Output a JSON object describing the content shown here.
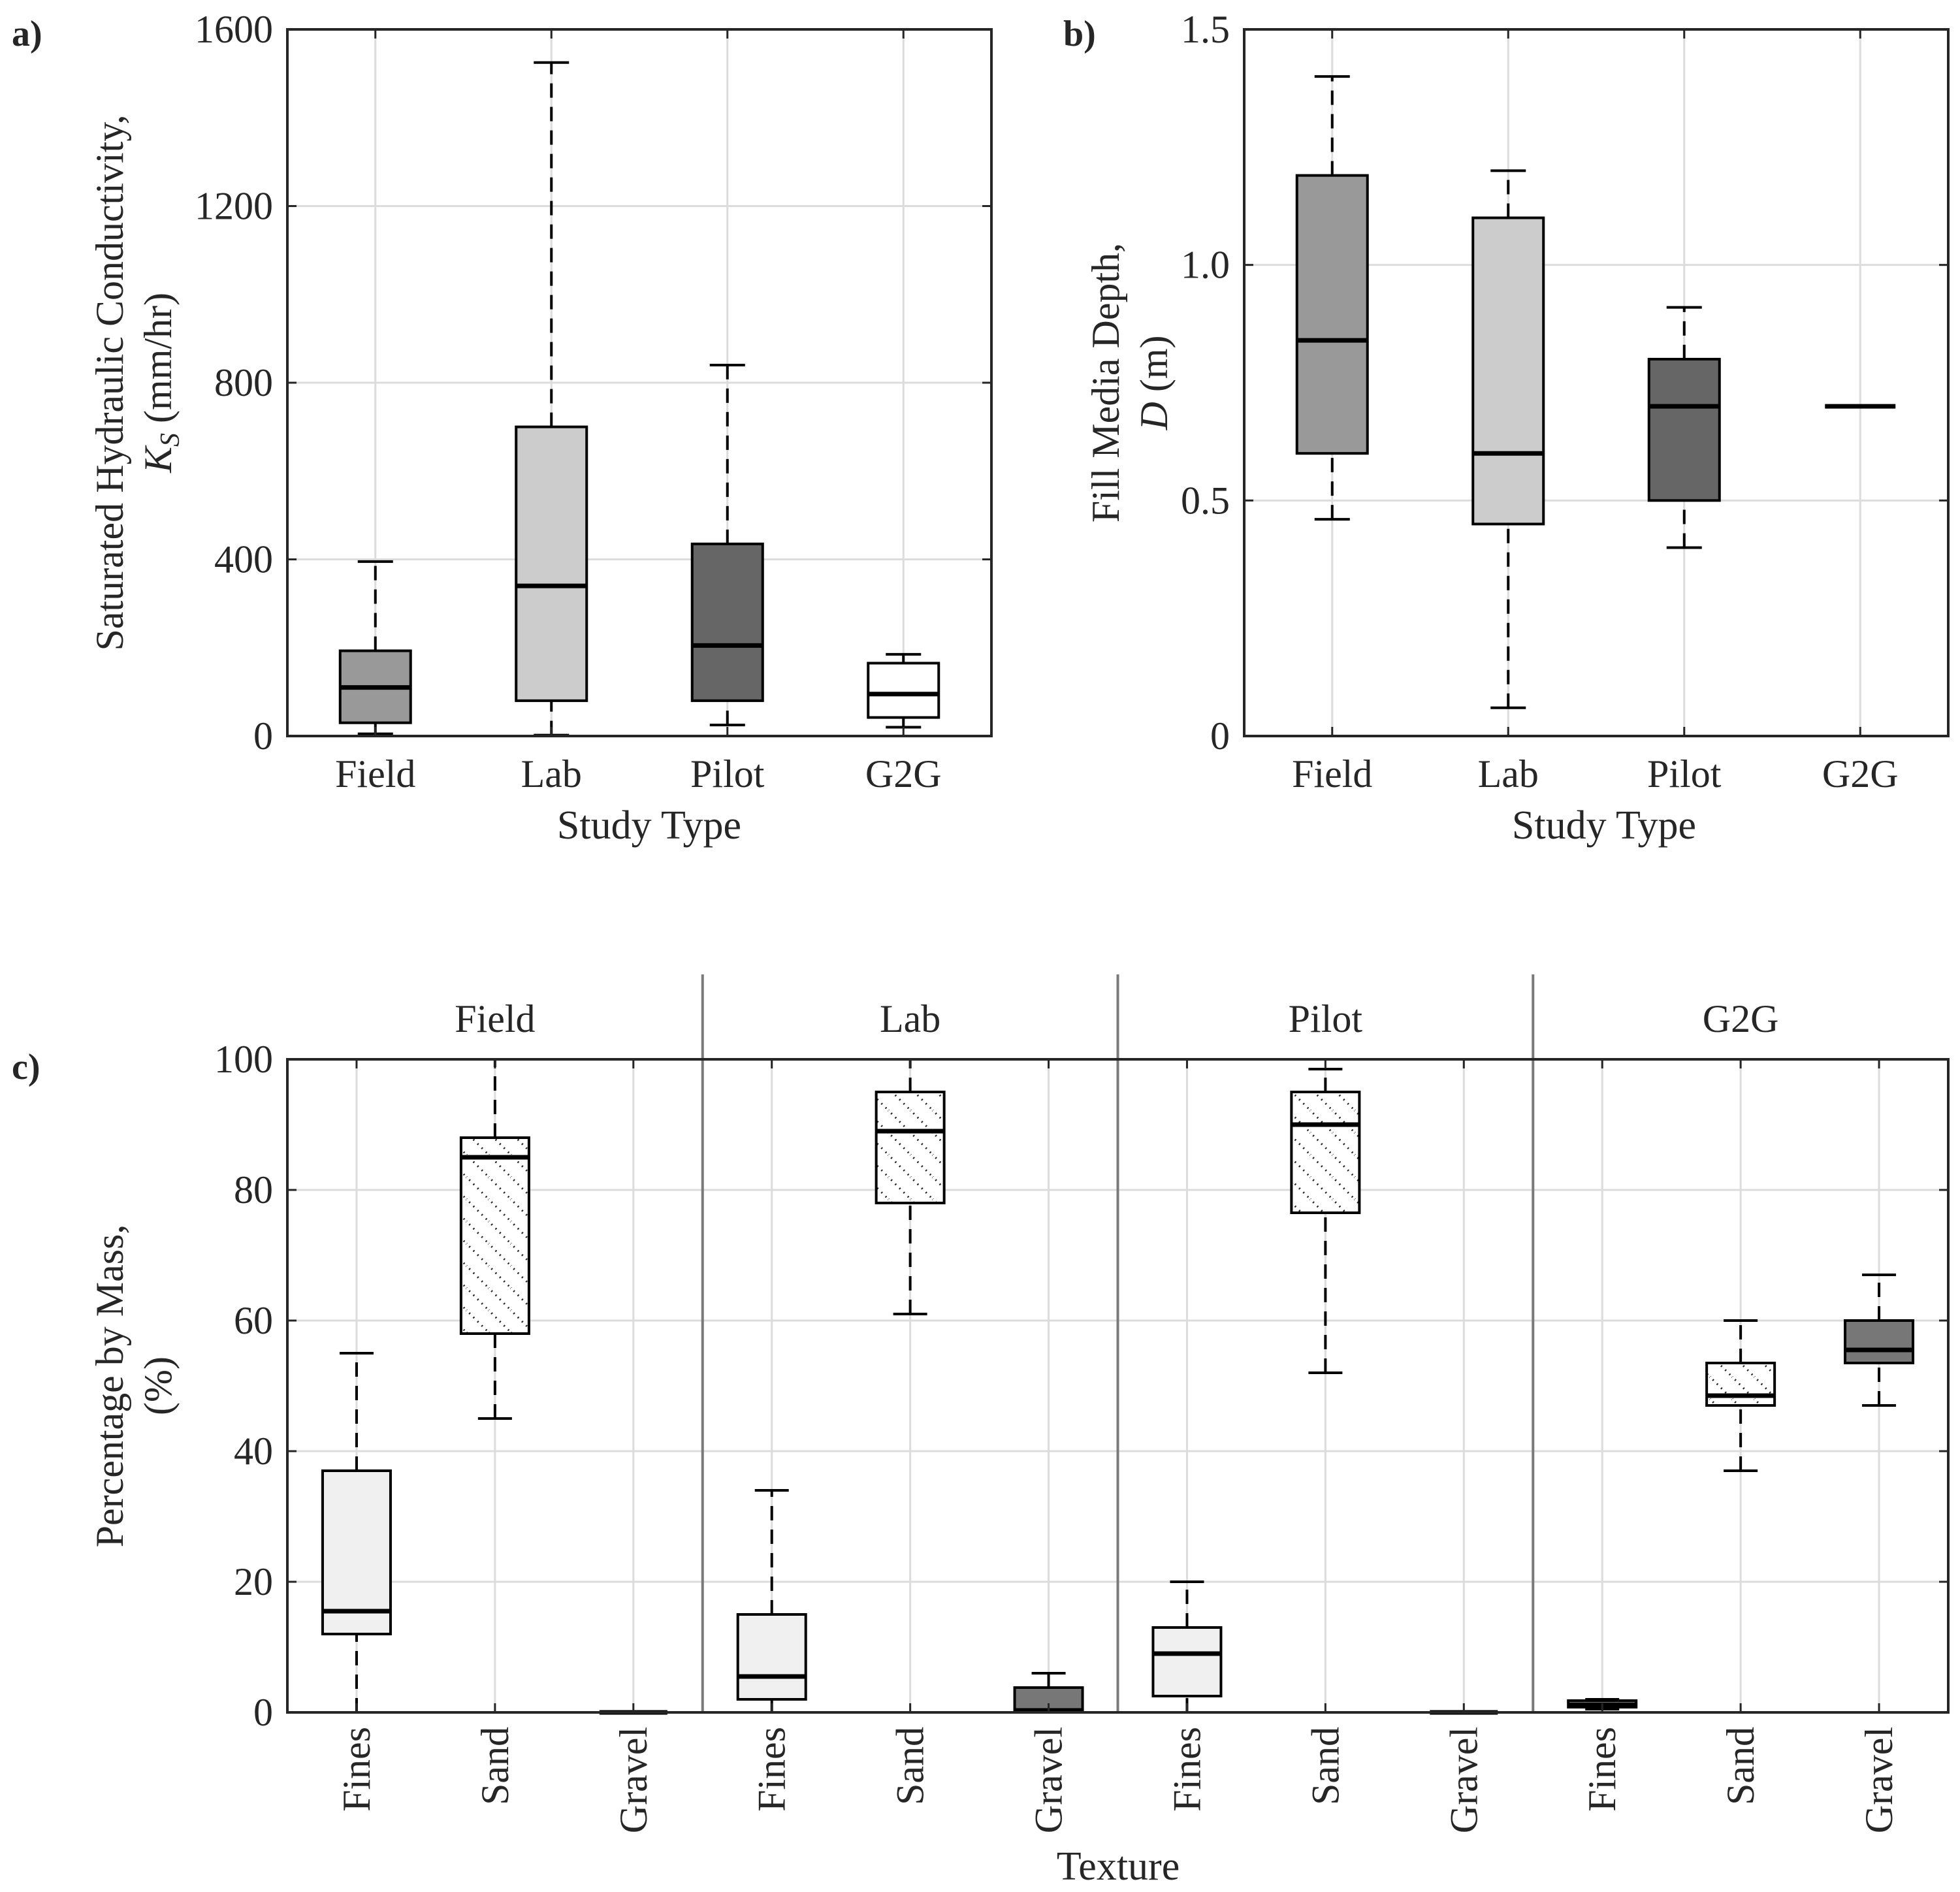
{
  "chart_data": [
    {
      "panel": "a)",
      "type": "boxplot",
      "title": "",
      "xlabel": "Study Type",
      "ylabel_line1": "Saturated Hydraulic Conductivity,",
      "ylabel_line2_symbol": "K",
      "ylabel_line2_sub": "S",
      "ylabel_line2_unit": " (mm/hr)",
      "ylim": [
        0,
        1600
      ],
      "yticks": [
        "0",
        "400",
        "800",
        "1200",
        "1600"
      ],
      "grid": true,
      "categories": [
        "Field",
        "Lab",
        "Pilot",
        "G2G"
      ],
      "boxes": [
        {
          "name": "Field",
          "min": 5,
          "q1": 30,
          "median": 110,
          "q3": 193,
          "max": 395,
          "fill": "#999999"
        },
        {
          "name": "Lab",
          "min": 2,
          "q1": 80,
          "median": 340,
          "q3": 700,
          "max": 1525,
          "fill": "#cccccc"
        },
        {
          "name": "Pilot",
          "min": 25,
          "q1": 80,
          "median": 205,
          "q3": 435,
          "max": 840,
          "fill": "#666666"
        },
        {
          "name": "G2G",
          "min": 20,
          "q1": 42,
          "median": 95,
          "q3": 165,
          "max": 185,
          "fill": "#ffffff"
        }
      ]
    },
    {
      "panel": "b)",
      "type": "boxplot",
      "title": "",
      "xlabel": "Study Type",
      "ylabel_line1": "Fill Media Depth,",
      "ylabel_line2_symbol": "D",
      "ylabel_line2_sub": "",
      "ylabel_line2_unit": " (m)",
      "ylim": [
        0,
        1.5
      ],
      "yticks": [
        "0",
        "0.5",
        "1.0",
        "1.5"
      ],
      "grid": true,
      "categories": [
        "Field",
        "Lab",
        "Pilot",
        "G2G"
      ],
      "boxes": [
        {
          "name": "Field",
          "min": 0.46,
          "q1": 0.6,
          "median": 0.84,
          "q3": 1.19,
          "max": 1.4,
          "fill": "#999999"
        },
        {
          "name": "Lab",
          "min": 0.06,
          "q1": 0.45,
          "median": 0.6,
          "q3": 1.1,
          "max": 1.2,
          "fill": "#cccccc"
        },
        {
          "name": "Pilot",
          "min": 0.4,
          "q1": 0.5,
          "median": 0.7,
          "q3": 0.8,
          "max": 0.91,
          "fill": "#666666"
        },
        {
          "name": "G2G",
          "min": 0.7,
          "q1": 0.7,
          "median": 0.7,
          "q3": 0.7,
          "max": 0.7,
          "fill": "#ffffff"
        }
      ]
    },
    {
      "panel": "c)",
      "type": "boxplot",
      "title": "",
      "xlabel": "Texture",
      "ylabel_line1": "Percentage by Mass,",
      "ylabel_line2_symbol": "",
      "ylabel_line2_sub": "",
      "ylabel_line2_unit": "(%)",
      "ylim": [
        0,
        100
      ],
      "yticks": [
        "0",
        "20",
        "40",
        "60",
        "80",
        "100"
      ],
      "grid": true,
      "groups": [
        "Field",
        "Lab",
        "Pilot",
        "G2G"
      ],
      "categories": [
        "Fines",
        "Sand",
        "Gravel",
        "Fines",
        "Sand",
        "Gravel",
        "Fines",
        "Sand",
        "Gravel",
        "Fines",
        "Sand",
        "Gravel"
      ],
      "boxes": [
        {
          "group": "Field",
          "name": "Fines",
          "min": 0,
          "q1": 12,
          "median": 15.5,
          "q3": 37,
          "max": 55,
          "style": "fines"
        },
        {
          "group": "Field",
          "name": "Sand",
          "min": 45,
          "q1": 58,
          "median": 85,
          "q3": 88,
          "max": 100,
          "style": "sand"
        },
        {
          "group": "Field",
          "name": "Gravel",
          "min": 0,
          "q1": 0,
          "median": 0,
          "q3": 0,
          "max": 0,
          "style": "gravel"
        },
        {
          "group": "Lab",
          "name": "Fines",
          "min": 0,
          "q1": 2,
          "median": 5.5,
          "q3": 15,
          "max": 34,
          "style": "fines"
        },
        {
          "group": "Lab",
          "name": "Sand",
          "min": 61,
          "q1": 78,
          "median": 89,
          "q3": 95,
          "max": 100,
          "style": "sand"
        },
        {
          "group": "Lab",
          "name": "Gravel",
          "min": 0,
          "q1": 0,
          "median": 0.3,
          "q3": 3.8,
          "max": 6,
          "style": "gravel"
        },
        {
          "group": "Pilot",
          "name": "Fines",
          "min": 0,
          "q1": 2.5,
          "median": 9,
          "q3": 13,
          "max": 20,
          "style": "fines"
        },
        {
          "group": "Pilot",
          "name": "Sand",
          "min": 52,
          "q1": 76.5,
          "median": 90,
          "q3": 95,
          "max": 98.5,
          "style": "sand"
        },
        {
          "group": "Pilot",
          "name": "Gravel",
          "min": 0,
          "q1": 0,
          "median": 0,
          "q3": 0,
          "max": 0,
          "style": "gravel"
        },
        {
          "group": "G2G",
          "name": "Fines",
          "min": 0.5,
          "q1": 0.8,
          "median": 1.2,
          "q3": 1.8,
          "max": 2,
          "style": "fines"
        },
        {
          "group": "G2G",
          "name": "Sand",
          "min": 37,
          "q1": 47,
          "median": 48.5,
          "q3": 53.5,
          "max": 60,
          "style": "sand"
        },
        {
          "group": "G2G",
          "name": "Gravel",
          "min": 47,
          "q1": 53.5,
          "median": 55.5,
          "q3": 60,
          "max": 67,
          "style": "gravel"
        }
      ]
    }
  ]
}
